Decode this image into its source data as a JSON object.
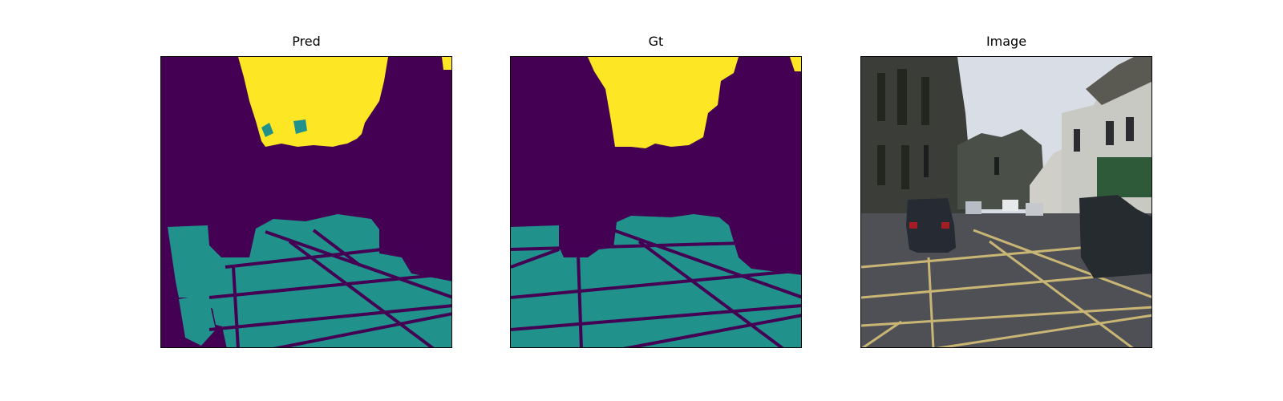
{
  "figure": {
    "panels": [
      {
        "title": "Pred"
      },
      {
        "title": "Gt"
      },
      {
        "title": "Image"
      }
    ]
  },
  "colors": {
    "class_dark": "#440154",
    "class_teal": "#21918c",
    "class_yellow": "#fde725"
  }
}
